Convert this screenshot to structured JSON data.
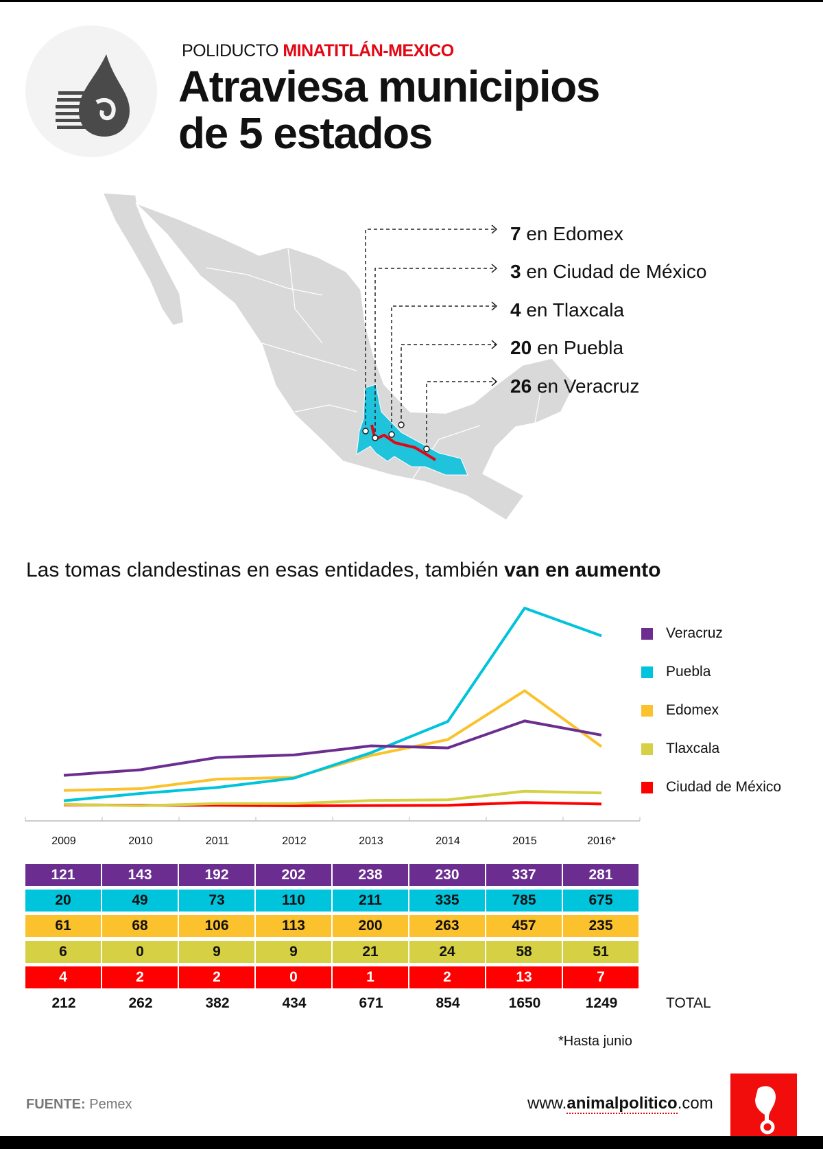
{
  "header": {
    "kicker_plain": "POLIDUCTO",
    "kicker_highlight": "MINATITLÁN-MEXICO",
    "title_line1": "Atraviesa municipios",
    "title_line2": "de 5 estados",
    "logo_icon": "pemex-eagle-drop-icon"
  },
  "map": {
    "labels": [
      {
        "count": "7",
        "text": "en Edomex"
      },
      {
        "count": "3",
        "text": "en Ciudad de México"
      },
      {
        "count": "4",
        "text": "en Tlaxcala"
      },
      {
        "count": "20",
        "text": "en Puebla"
      },
      {
        "count": "26",
        "text": "en Veracruz"
      }
    ],
    "colors": {
      "land": "#d9d9d9",
      "highlight": "#1fc3dc",
      "pipeline": "#e30613"
    }
  },
  "subtitle": {
    "plain": "Las tomas clandestinas en esas entidades, también",
    "bold": "van en aumento"
  },
  "chart_data": {
    "type": "line",
    "title": "",
    "xlabel": "",
    "ylabel": "",
    "categories": [
      "2009",
      "2010",
      "2011",
      "2012",
      "2013",
      "2014",
      "2015",
      "2016*"
    ],
    "ylim": [
      0,
      785
    ],
    "grid": false,
    "legend": "right",
    "series": [
      {
        "name": "Veracruz",
        "color": "#6b2d90",
        "text": "#ffffff",
        "values": [
          121,
          143,
          192,
          202,
          238,
          230,
          337,
          281
        ]
      },
      {
        "name": "Puebla",
        "color": "#00c3dc",
        "text": "#111111",
        "values": [
          20,
          49,
          73,
          110,
          211,
          335,
          785,
          675
        ]
      },
      {
        "name": "Edomex",
        "color": "#fcc22d",
        "text": "#111111",
        "values": [
          61,
          68,
          106,
          113,
          200,
          263,
          457,
          235
        ]
      },
      {
        "name": "Tlaxcala",
        "color": "#d6d045",
        "text": "#111111",
        "values": [
          6,
          0,
          9,
          9,
          21,
          24,
          58,
          51
        ]
      },
      {
        "name": "Ciudad de México",
        "color": "#ff0000",
        "text": "#ffffff",
        "values": [
          4,
          2,
          2,
          0,
          1,
          2,
          13,
          7
        ]
      }
    ],
    "totals": [
      212,
      262,
      382,
      434,
      671,
      854,
      1650,
      1249
    ],
    "total_label": "TOTAL",
    "note": "*Hasta junio"
  },
  "footer": {
    "source_label": "FUENTE:",
    "source_value": "Pemex",
    "url_prefix": "www.",
    "url_bold": "animalpolitico",
    "url_suffix": ".com",
    "brand_icon": "elephant-logo-icon"
  }
}
